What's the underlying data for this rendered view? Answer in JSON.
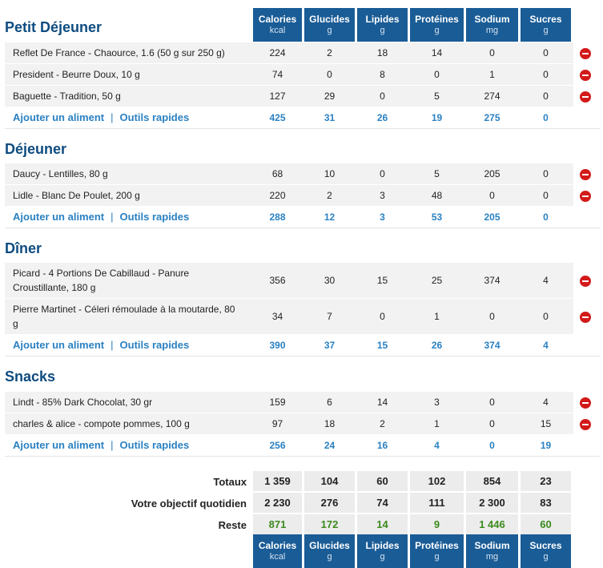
{
  "columns": [
    {
      "name": "Calories",
      "unit": "kcal"
    },
    {
      "name": "Glucides",
      "unit": "g"
    },
    {
      "name": "Lipides",
      "unit": "g"
    },
    {
      "name": "Protéines",
      "unit": "g"
    },
    {
      "name": "Sodium",
      "unit": "mg"
    },
    {
      "name": "Sucres",
      "unit": "g"
    }
  ],
  "meals": [
    {
      "title": "Petit Déjeuner",
      "items": [
        {
          "name": "Reflet De France - Chaource, 1.6 (50 g sur 250 g)",
          "values": [
            "224",
            "2",
            "18",
            "14",
            "0",
            "0"
          ]
        },
        {
          "name": "President - Beurre Doux, 10 g",
          "values": [
            "74",
            "0",
            "8",
            "0",
            "1",
            "0"
          ]
        },
        {
          "name": "Baguette - Tradition, 50 g",
          "values": [
            "127",
            "29",
            "0",
            "5",
            "274",
            "0"
          ]
        }
      ],
      "totals": [
        "425",
        "31",
        "26",
        "19",
        "275",
        "0"
      ]
    },
    {
      "title": "Déjeuner",
      "items": [
        {
          "name": "Daucy - Lentilles, 80 g",
          "values": [
            "68",
            "10",
            "0",
            "5",
            "205",
            "0"
          ]
        },
        {
          "name": "Lidle - Blanc De Poulet, 200 g",
          "values": [
            "220",
            "2",
            "3",
            "48",
            "0",
            "0"
          ]
        }
      ],
      "totals": [
        "288",
        "12",
        "3",
        "53",
        "205",
        "0"
      ]
    },
    {
      "title": "Dîner",
      "items": [
        {
          "name": "Picard - 4 Portions De Cabillaud - Panure Croustillante, 180 g",
          "values": [
            "356",
            "30",
            "15",
            "25",
            "374",
            "4"
          ]
        },
        {
          "name": "Pierre Martinet - Céleri rémoulade à la moutarde, 80 g",
          "values": [
            "34",
            "7",
            "0",
            "1",
            "0",
            "0"
          ]
        }
      ],
      "totals": [
        "390",
        "37",
        "15",
        "26",
        "374",
        "4"
      ]
    },
    {
      "title": "Snacks",
      "items": [
        {
          "name": "Lindt - 85% Dark Chocolat, 30 gr",
          "values": [
            "159",
            "6",
            "14",
            "3",
            "0",
            "4"
          ]
        },
        {
          "name": "charles & alice - compote pommes, 100 g",
          "values": [
            "97",
            "18",
            "2",
            "1",
            "0",
            "15"
          ]
        }
      ],
      "totals": [
        "256",
        "24",
        "16",
        "4",
        "0",
        "19"
      ]
    }
  ],
  "actions": {
    "add_food": "Ajouter un aliment",
    "quick_tools": "Outils rapides",
    "separator": "|"
  },
  "summary": {
    "totals": {
      "label": "Totaux",
      "values": [
        "1 359",
        "104",
        "60",
        "102",
        "854",
        "23"
      ]
    },
    "goal": {
      "label": "Votre objectif quotidien",
      "values": [
        "2 230",
        "276",
        "74",
        "111",
        "2 300",
        "83"
      ]
    },
    "remaining": {
      "label": "Reste",
      "values": [
        "871",
        "172",
        "14",
        "9",
        "1 446",
        "60"
      ]
    }
  },
  "colors": {
    "header_bg": "#1a5c96",
    "title": "#0e4c80",
    "link": "#2a81c2",
    "remaining": "#3b8a1e",
    "delete": "#d31a1a"
  },
  "icons": {
    "delete": "minus-circle-icon"
  }
}
